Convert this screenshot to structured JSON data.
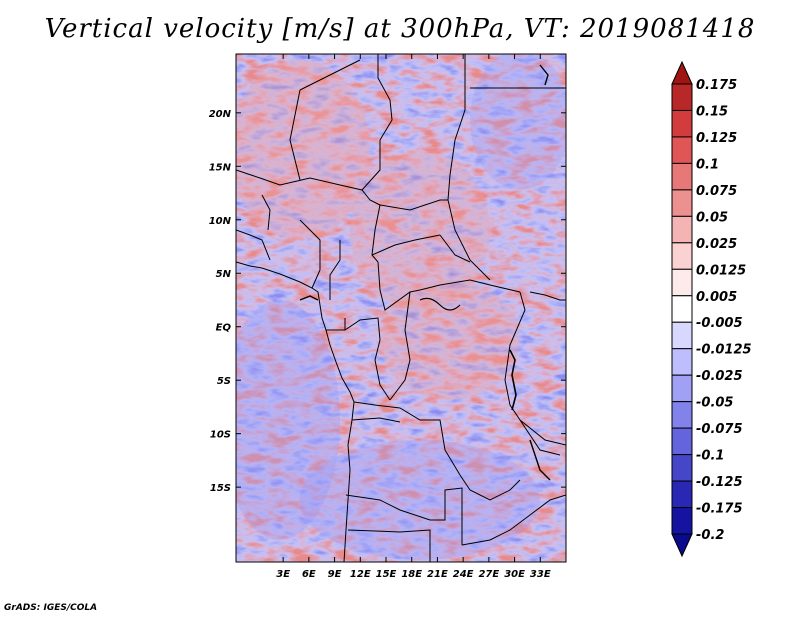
{
  "title": "Vertical velocity [m/s] at 300hPa, VT: 2019081418",
  "credit": "GrADS: IGES/COLA",
  "map": {
    "lon_range": [
      -2.5,
      36
    ],
    "lat_range": [
      -22,
      25.5
    ],
    "x_ticks": [
      {
        "lon": 3,
        "label": "3E"
      },
      {
        "lon": 6,
        "label": "6E"
      },
      {
        "lon": 9,
        "label": "9E"
      },
      {
        "lon": 12,
        "label": "12E"
      },
      {
        "lon": 15,
        "label": "15E"
      },
      {
        "lon": 18,
        "label": "18E"
      },
      {
        "lon": 21,
        "label": "21E"
      },
      {
        "lon": 24,
        "label": "24E"
      },
      {
        "lon": 27,
        "label": "27E"
      },
      {
        "lon": 30,
        "label": "30E"
      },
      {
        "lon": 33,
        "label": "33E"
      }
    ],
    "y_ticks": [
      {
        "lat": 20,
        "label": "20N"
      },
      {
        "lat": 15,
        "label": "15N"
      },
      {
        "lat": 10,
        "label": "10N"
      },
      {
        "lat": 5,
        "label": "5N"
      },
      {
        "lat": 0,
        "label": "EQ"
      },
      {
        "lat": -5,
        "label": "5S"
      },
      {
        "lat": -10,
        "label": "10S"
      },
      {
        "lat": -15,
        "label": "15S"
      }
    ],
    "field": "vertical velocity at 300hPa"
  },
  "colorbar": {
    "labels": [
      "0.175",
      "0.15",
      "0.125",
      "0.1",
      "0.075",
      "0.05",
      "0.025",
      "0.0125",
      "0.005",
      "-0.005",
      "-0.0125",
      "-0.025",
      "-0.05",
      "-0.075",
      "-0.1",
      "-0.125",
      "-0.175",
      "-0.2"
    ],
    "colors": [
      "#a01414",
      "#b92828",
      "#d23c3c",
      "#e05555",
      "#e67878",
      "#ec9090",
      "#f4b4b4",
      "#fad2d2",
      "#fdeaea",
      "#ffffff",
      "#d8d8ff",
      "#bebeff",
      "#a0a0f5",
      "#8282eb",
      "#6464dc",
      "#4646c8",
      "#2828b4",
      "#1414a0",
      "#0a0a8c"
    ]
  }
}
